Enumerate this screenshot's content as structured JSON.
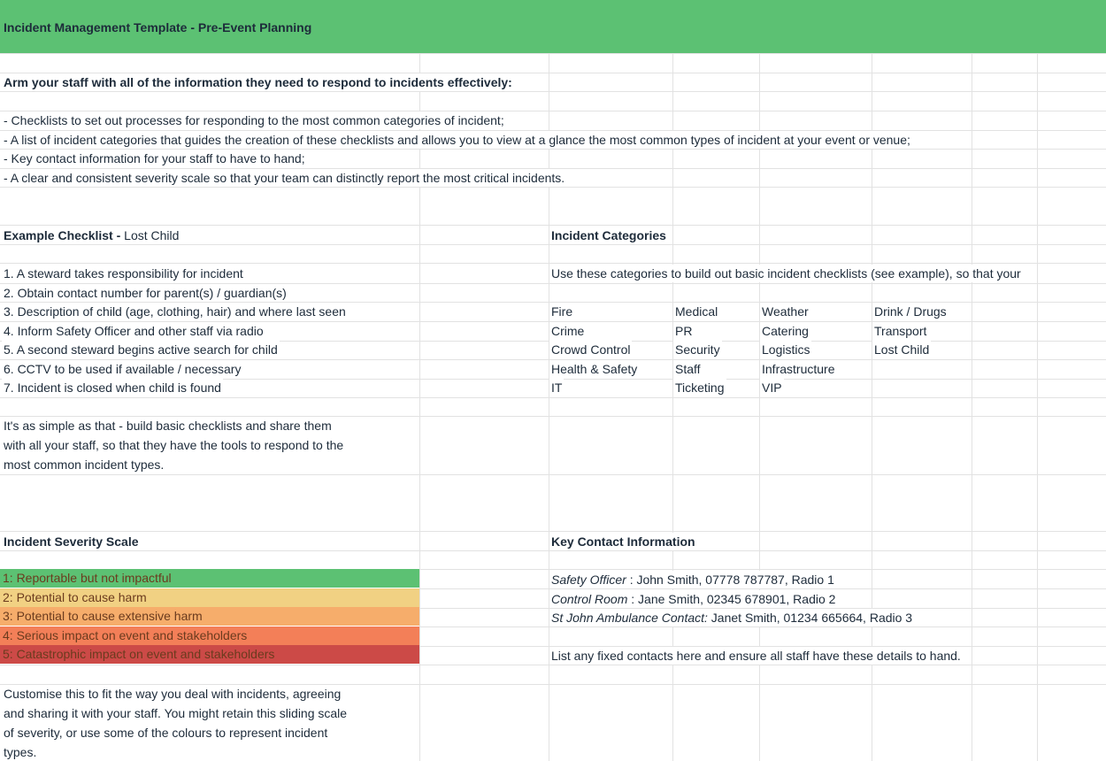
{
  "header": {
    "title": "Incident Management Template - Pre-Event Planning"
  },
  "intro": {
    "heading": "Arm your staff with all of the information they need to respond to incidents effectively:",
    "bullets": [
      "- Checklists to set out processes for responding to the most common categories of incident;",
      "- A list of incident categories that guides the creation of these checklists and allows you to view at a glance the most common types of incident at your event or venue;",
      "- Key contact information for your staff to have to hand;",
      "- A clear and consistent severity scale so that your team can distinctly report the most critical incidents."
    ]
  },
  "checklist": {
    "heading_bold": "Example Checklist -",
    "heading_rest": "Lost Child",
    "steps": [
      "1. A steward takes responsibility for incident",
      "2. Obtain contact number for parent(s) / guardian(s)",
      "3. Description of child (age, clothing, hair) and where last seen",
      "4. Inform Safety Officer and other staff via radio",
      "5. A second steward begins active search for child",
      "6. CCTV to be used if available / necessary",
      "7. Incident is closed when child is found"
    ],
    "note": [
      "It's as simple as that - build basic checklists and share them",
      "with all your staff, so that they have the tools to respond to the",
      "most common incident types."
    ]
  },
  "categories": {
    "heading": "Incident Categories",
    "intro": "Use these categories to build out basic incident checklists (see example), so that your",
    "rows": [
      [
        "Fire",
        "Medical",
        "Weather",
        "Drink / Drugs"
      ],
      [
        "Crime",
        "PR",
        "Catering",
        "Transport"
      ],
      [
        "Crowd Control",
        "Security",
        "Logistics",
        "Lost Child"
      ],
      [
        "Health & Safety",
        "Staff",
        "Infrastructure"
      ],
      [
        "IT",
        "Ticketing",
        "VIP"
      ]
    ]
  },
  "severity": {
    "heading": "Incident Severity Scale",
    "levels": [
      {
        "label": "1: Reportable but not impactful",
        "color": "#5cc173"
      },
      {
        "label": "2: Potential to cause harm",
        "color": "#f1d183"
      },
      {
        "label": "3: Potential to cause extensive harm",
        "color": "#f6ad6b"
      },
      {
        "label": "4: Serious impact on event and stakeholders",
        "color": "#f37f58"
      },
      {
        "label": "5: Catastrophic impact on event and stakeholders",
        "color": "#cc4a47"
      }
    ],
    "note": [
      "Customise this to fit the way you deal with incidents, agreeing",
      "and sharing it with your staff. You might retain this sliding scale",
      "of severity, or use some of the colours to represent incident",
      "types."
    ]
  },
  "contacts": {
    "heading": "Key Contact Information",
    "items": [
      {
        "role": "Safety Officer",
        "detail": ": John Smith, 07778 787787, Radio 1"
      },
      {
        "role": "Control Room",
        "detail": ": Jane Smith, 02345 678901, Radio 2"
      },
      {
        "role": "St John Ambulance Contact:",
        "detail": "Janet Smith, 01234 665664, Radio 3"
      }
    ],
    "note": "List any fixed contacts here and ensure all staff have these details to hand."
  }
}
